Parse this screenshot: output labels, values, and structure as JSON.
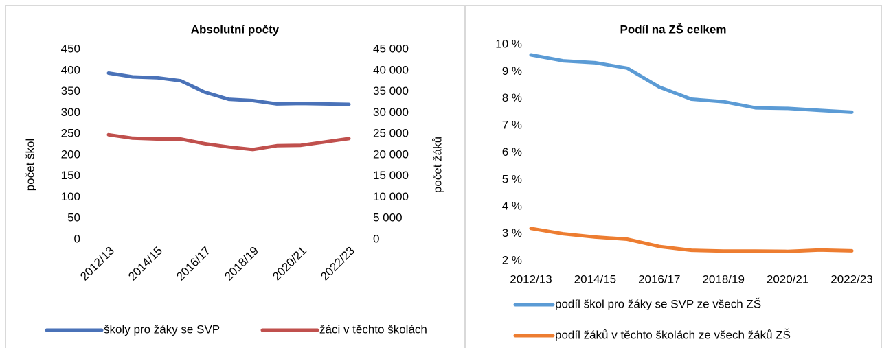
{
  "chart_data": [
    {
      "type": "line",
      "title": "Absolutní počty",
      "categories": [
        "2012/13",
        null,
        "2014/15",
        null,
        "2016/17",
        null,
        "2018/19",
        null,
        "2020/21",
        null,
        "2022/23"
      ],
      "y_label": "počet škol",
      "y2_label": "počet žáků",
      "ylim": [
        0,
        450
      ],
      "yticks": [
        0,
        50,
        100,
        150,
        200,
        250,
        300,
        350,
        400,
        450
      ],
      "y2lim": [
        0,
        45000
      ],
      "y2ticks": [
        0,
        {
          "value": 5000,
          "label": "5 000"
        },
        {
          "value": 10000,
          "label": "10 000"
        },
        {
          "value": 15000,
          "label": "15 000"
        },
        {
          "value": 20000,
          "label": "20 000"
        },
        {
          "value": 25000,
          "label": "25 000"
        },
        {
          "value": 30000,
          "label": "30 000"
        },
        {
          "value": 35000,
          "label": "35 000"
        },
        {
          "value": 40000,
          "label": "40 000"
        },
        {
          "value": 45000,
          "label": "45 000"
        }
      ],
      "series": [
        {
          "name": "školy pro žáky se SVP",
          "color": "#4a72b8",
          "values": [
            394,
            385,
            383,
            376,
            349,
            332,
            329,
            321,
            322,
            321,
            320
          ]
        },
        {
          "name": "žáci v těchto školách",
          "color": "#c0504d",
          "axis": "y2",
          "values": [
            24800,
            24000,
            23800,
            23800,
            22700,
            21900,
            21300,
            22200,
            22300,
            23100,
            23900
          ]
        }
      ]
    },
    {
      "type": "line",
      "title": "Podíl na ZŠ celkem",
      "categories": [
        "2012/13",
        null,
        "2014/15",
        null,
        "2016/17",
        null,
        "2018/19",
        null,
        "2020/21",
        null,
        "2022/23"
      ],
      "ylim": [
        2,
        10
      ],
      "yticks": [
        {
          "value": 2,
          "label": "2 %"
        },
        {
          "value": 3,
          "label": "3 %"
        },
        {
          "value": 4,
          "label": "4 %"
        },
        {
          "value": 5,
          "label": "5 %"
        },
        {
          "value": 6,
          "label": "6 %"
        },
        {
          "value": 7,
          "label": "7 %"
        },
        {
          "value": 8,
          "label": "8 %"
        },
        {
          "value": 9,
          "label": "9 %"
        },
        {
          "value": 10,
          "label": "10 %"
        }
      ],
      "series": [
        {
          "name": "podíl škol pro žáky se SVP ze všech ZŠ",
          "color": "#5b9bd5",
          "values": [
            9.62,
            9.4,
            9.33,
            9.13,
            8.43,
            7.98,
            7.89,
            7.66,
            7.64,
            7.57,
            7.5
          ]
        },
        {
          "name": "podíl žáků v těchto školách ze všech žáků ZŠ",
          "color": "#ed7d31",
          "values": [
            3.2,
            3.0,
            2.88,
            2.8,
            2.53,
            2.39,
            2.36,
            2.36,
            2.35,
            2.4,
            2.37
          ]
        }
      ]
    }
  ]
}
